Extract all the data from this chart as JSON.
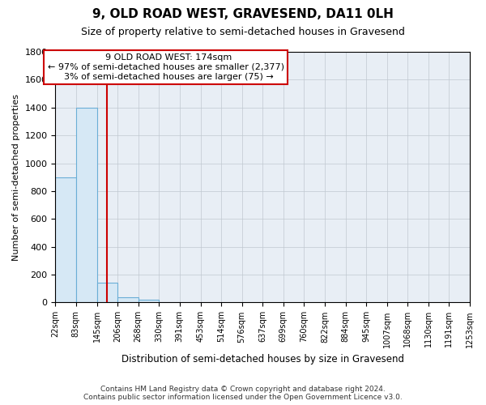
{
  "title": "9, OLD ROAD WEST, GRAVESEND, DA11 0LH",
  "subtitle": "Size of property relative to semi-detached houses in Gravesend",
  "xlabel": "Distribution of semi-detached houses by size in Gravesend",
  "ylabel": "Number of semi-detached properties",
  "property_size": 174,
  "property_label": "9 OLD ROAD WEST: 174sqm",
  "pct_smaller": 97,
  "count_smaller": 2377,
  "pct_larger": 3,
  "count_larger": 75,
  "bar_color": "#d6e8f5",
  "bar_edge_color": "#6aaed6",
  "line_color": "#cc0000",
  "annotation_box_edge_color": "#cc0000",
  "bin_edges": [
    22,
    83,
    145,
    206,
    268,
    330,
    391,
    453,
    514,
    576,
    637,
    699,
    760,
    822,
    884,
    945,
    1007,
    1068,
    1130,
    1191,
    1253
  ],
  "bar_heights": [
    900,
    1400,
    140,
    35,
    20,
    0,
    0,
    0,
    0,
    0,
    0,
    0,
    0,
    0,
    0,
    0,
    0,
    0,
    0,
    0
  ],
  "ylim": [
    0,
    1800
  ],
  "yticks": [
    0,
    200,
    400,
    600,
    800,
    1000,
    1200,
    1400,
    1600,
    1800
  ],
  "plot_background": "#e8eef5",
  "grid_color": "#c0c8d0",
  "footer_line1": "Contains HM Land Registry data © Crown copyright and database right 2024.",
  "footer_line2": "Contains public sector information licensed under the Open Government Licence v3.0."
}
